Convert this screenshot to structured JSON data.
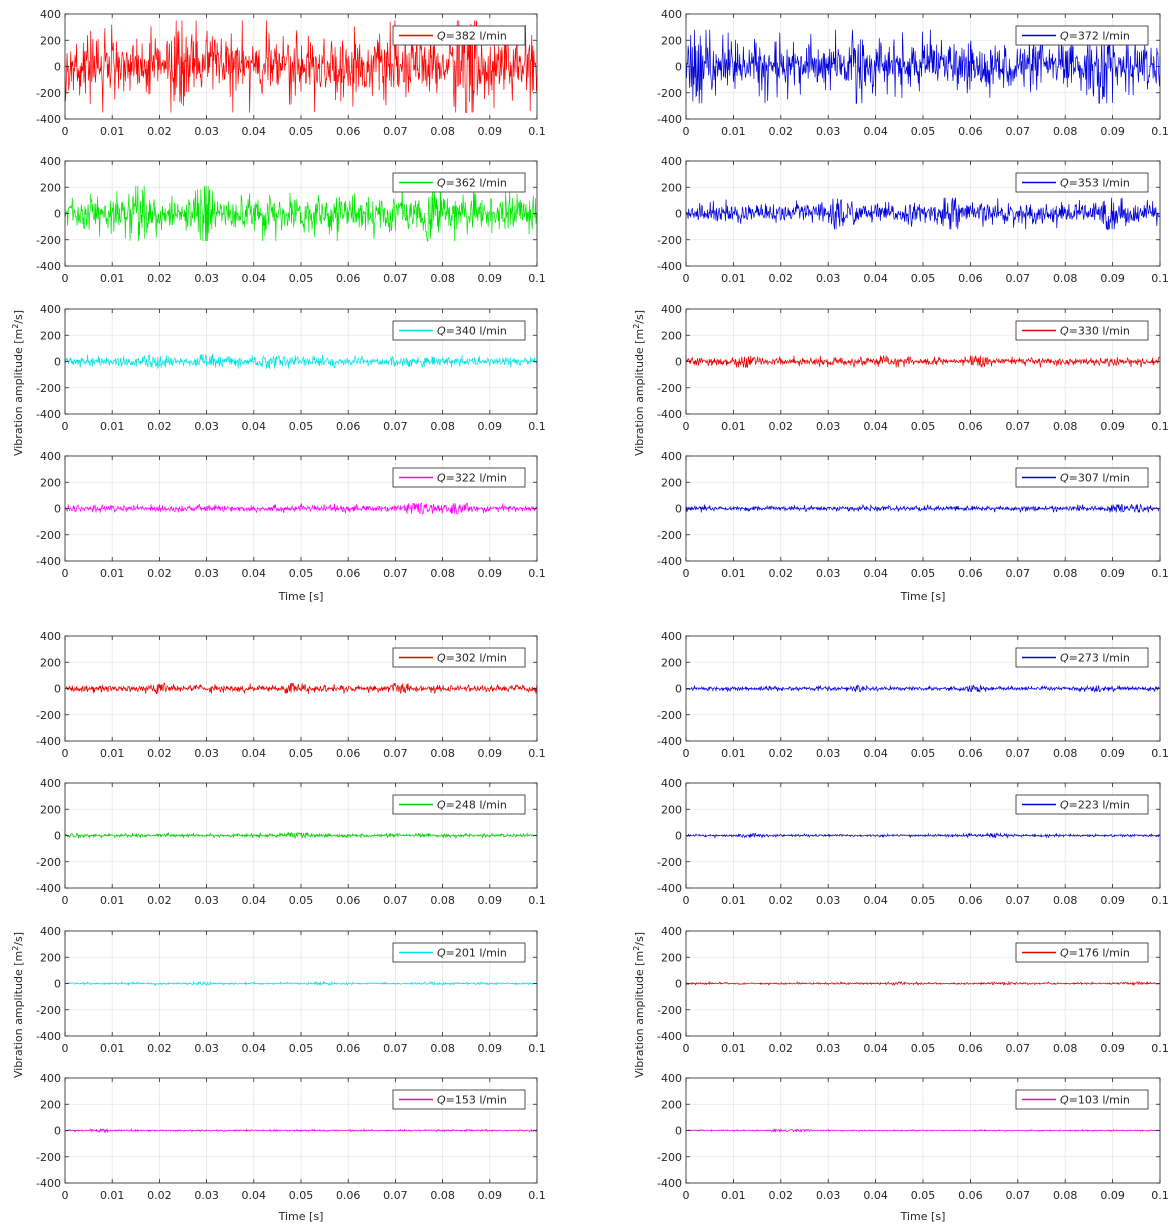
{
  "figure": {
    "y_axis_label": "Vibration amplitude",
    "y_axis_unit": "[m²/s]",
    "x_axis_label": "Time [s]",
    "legend_prefix": "Q",
    "legend_unit": "l/min"
  },
  "chart_data": [
    {
      "type": "line",
      "block": "top",
      "column": "left",
      "row": 1,
      "series": [
        {
          "name": "Q=382 l/min",
          "color": "#ff0000",
          "amplitude": 350
        }
      ],
      "xlim": [
        0,
        0.1
      ],
      "ylim": [
        -400,
        400
      ],
      "xticks": [
        "0",
        "0.01",
        "0.02",
        "0.03",
        "0.04",
        "0.05",
        "0.06",
        "0.07",
        "0.08",
        "0.09",
        "0.1"
      ],
      "yticks": [
        "400",
        "200",
        "0",
        "-200",
        "-400"
      ],
      "grid": true,
      "legend": "top-right"
    },
    {
      "type": "line",
      "block": "top",
      "column": "left",
      "row": 2,
      "series": [
        {
          "name": "Q=362 l/min",
          "color": "#00e600",
          "amplitude": 210
        }
      ],
      "xlim": [
        0,
        0.1
      ],
      "ylim": [
        -400,
        400
      ],
      "xticks": [
        "0",
        "0.01",
        "0.02",
        "0.03",
        "0.04",
        "0.05",
        "0.06",
        "0.07",
        "0.08",
        "0.09",
        "0.1"
      ],
      "yticks": [
        "400",
        "200",
        "0",
        "-200",
        "-400"
      ],
      "grid": true,
      "legend": "top-right"
    },
    {
      "type": "line",
      "block": "top",
      "column": "left",
      "row": 3,
      "series": [
        {
          "name": "Q=340 l/min",
          "color": "#00e5e5",
          "amplitude": 55
        }
      ],
      "xlim": [
        0,
        0.1
      ],
      "ylim": [
        -400,
        400
      ],
      "xticks": [
        "0",
        "0.01",
        "0.02",
        "0.03",
        "0.04",
        "0.05",
        "0.06",
        "0.07",
        "0.08",
        "0.09",
        "0.1"
      ],
      "yticks": [
        "400",
        "200",
        "0",
        "-200",
        "-400"
      ],
      "grid": true,
      "legend": "top-right"
    },
    {
      "type": "line",
      "block": "top",
      "column": "left",
      "row": 4,
      "series": [
        {
          "name": "Q=322 l/min",
          "color": "#ff00ff",
          "amplitude": 40
        }
      ],
      "xlim": [
        0,
        0.1
      ],
      "ylim": [
        -400,
        400
      ],
      "xticks": [
        "0",
        "0.01",
        "0.02",
        "0.03",
        "0.04",
        "0.05",
        "0.06",
        "0.07",
        "0.08",
        "0.09",
        "0.1"
      ],
      "yticks": [
        "400",
        "200",
        "0",
        "-200",
        "-400"
      ],
      "grid": true,
      "legend": "top-right"
    },
    {
      "type": "line",
      "block": "top",
      "column": "right",
      "row": 1,
      "series": [
        {
          "name": "Q=372 l/min",
          "color": "#0000dd",
          "amplitude": 280
        }
      ],
      "xlim": [
        0,
        0.1
      ],
      "ylim": [
        -400,
        400
      ],
      "xticks": [
        "0",
        "0.01",
        "0.02",
        "0.03",
        "0.04",
        "0.05",
        "0.06",
        "0.07",
        "0.08",
        "0.09",
        "0.1"
      ],
      "yticks": [
        "400",
        "200",
        "0",
        "-200",
        "-400"
      ],
      "grid": true,
      "legend": "top-right"
    },
    {
      "type": "line",
      "block": "top",
      "column": "right",
      "row": 2,
      "series": [
        {
          "name": "Q=353 l/min",
          "color": "#0000dd",
          "amplitude": 120
        }
      ],
      "xlim": [
        0,
        0.1
      ],
      "ylim": [
        -400,
        400
      ],
      "xticks": [
        "0",
        "0.01",
        "0.02",
        "0.03",
        "0.04",
        "0.05",
        "0.06",
        "0.07",
        "0.08",
        "0.09",
        "0.1"
      ],
      "yticks": [
        "400",
        "200",
        "0",
        "-200",
        "-400"
      ],
      "grid": true,
      "legend": "top-right"
    },
    {
      "type": "line",
      "block": "top",
      "column": "right",
      "row": 3,
      "series": [
        {
          "name": "Q=330 l/min",
          "color": "#e60000",
          "amplitude": 45
        }
      ],
      "xlim": [
        0,
        0.1
      ],
      "ylim": [
        -400,
        400
      ],
      "xticks": [
        "0",
        "0.01",
        "0.02",
        "0.03",
        "0.04",
        "0.05",
        "0.06",
        "0.07",
        "0.08",
        "0.09",
        "0.1"
      ],
      "yticks": [
        "400",
        "200",
        "0",
        "-200",
        "-400"
      ],
      "grid": true,
      "legend": "top-right"
    },
    {
      "type": "line",
      "block": "top",
      "column": "right",
      "row": 4,
      "series": [
        {
          "name": "Q=307 l/min",
          "color": "#0000dd",
          "amplitude": 30
        }
      ],
      "xlim": [
        0,
        0.1
      ],
      "ylim": [
        -400,
        400
      ],
      "xticks": [
        "0",
        "0.01",
        "0.02",
        "0.03",
        "0.04",
        "0.05",
        "0.06",
        "0.07",
        "0.08",
        "0.09",
        "0.1"
      ],
      "yticks": [
        "400",
        "200",
        "0",
        "-200",
        "-400"
      ],
      "grid": true,
      "legend": "top-right"
    },
    {
      "type": "line",
      "block": "bottom",
      "column": "left",
      "row": 1,
      "series": [
        {
          "name": "Q=302 l/min",
          "color": "#e60000",
          "amplitude": 40
        }
      ],
      "xlim": [
        0,
        0.1
      ],
      "ylim": [
        -400,
        400
      ],
      "xticks": [
        "0",
        "0.01",
        "0.02",
        "0.03",
        "0.04",
        "0.05",
        "0.06",
        "0.07",
        "0.08",
        "0.09",
        "0.1"
      ],
      "yticks": [
        "400",
        "200",
        "0",
        "-200",
        "-400"
      ],
      "grid": true,
      "legend": "top-right"
    },
    {
      "type": "line",
      "block": "bottom",
      "column": "left",
      "row": 2,
      "series": [
        {
          "name": "Q=248 l/min",
          "color": "#00cc00",
          "amplitude": 20
        }
      ],
      "xlim": [
        0,
        0.1
      ],
      "ylim": [
        -400,
        400
      ],
      "xticks": [
        "0",
        "0.01",
        "0.02",
        "0.03",
        "0.04",
        "0.05",
        "0.06",
        "0.07",
        "0.08",
        "0.09",
        "0.1"
      ],
      "yticks": [
        "400",
        "200",
        "0",
        "-200",
        "-400"
      ],
      "grid": true,
      "legend": "top-right"
    },
    {
      "type": "line",
      "block": "bottom",
      "column": "left",
      "row": 3,
      "series": [
        {
          "name": "Q=201 l/min",
          "color": "#00e5e5",
          "amplitude": 12
        }
      ],
      "xlim": [
        0,
        0.1
      ],
      "ylim": [
        -400,
        400
      ],
      "xticks": [
        "0",
        "0.01",
        "0.02",
        "0.03",
        "0.04",
        "0.05",
        "0.06",
        "0.07",
        "0.08",
        "0.09",
        "0.1"
      ],
      "yticks": [
        "400",
        "200",
        "0",
        "-200",
        "-400"
      ],
      "grid": true,
      "legend": "top-right"
    },
    {
      "type": "line",
      "block": "bottom",
      "column": "left",
      "row": 4,
      "series": [
        {
          "name": "Q=153 l/min",
          "color": "#e600e6",
          "amplitude": 10
        }
      ],
      "xlim": [
        0,
        0.1
      ],
      "ylim": [
        -400,
        400
      ],
      "xticks": [
        "0",
        "0.01",
        "0.02",
        "0.03",
        "0.04",
        "0.05",
        "0.06",
        "0.07",
        "0.08",
        "0.09",
        "0.1"
      ],
      "yticks": [
        "400",
        "200",
        "0",
        "-200",
        "-400"
      ],
      "grid": true,
      "legend": "top-right"
    },
    {
      "type": "line",
      "block": "bottom",
      "column": "right",
      "row": 1,
      "series": [
        {
          "name": "Q=273 l/min",
          "color": "#0000dd",
          "amplitude": 25
        }
      ],
      "xlim": [
        0,
        0.1
      ],
      "ylim": [
        -400,
        400
      ],
      "xticks": [
        "0",
        "0.01",
        "0.02",
        "0.03",
        "0.04",
        "0.05",
        "0.06",
        "0.07",
        "0.08",
        "0.09",
        "0.1"
      ],
      "yticks": [
        "400",
        "200",
        "0",
        "-200",
        "-400"
      ],
      "grid": true,
      "legend": "top-right"
    },
    {
      "type": "line",
      "block": "bottom",
      "column": "right",
      "row": 2,
      "series": [
        {
          "name": "Q=223 l/min",
          "color": "#0000dd",
          "amplitude": 15
        }
      ],
      "xlim": [
        0,
        0.1
      ],
      "ylim": [
        -400,
        400
      ],
      "xticks": [
        "0",
        "0.01",
        "0.02",
        "0.03",
        "0.04",
        "0.05",
        "0.06",
        "0.07",
        "0.08",
        "0.09",
        "0.1"
      ],
      "yticks": [
        "400",
        "200",
        "0",
        "-200",
        "-400"
      ],
      "grid": true,
      "legend": "top-right"
    },
    {
      "type": "line",
      "block": "bottom",
      "column": "right",
      "row": 3,
      "series": [
        {
          "name": "Q=176 l/min",
          "color": "#e60000",
          "amplitude": 12
        }
      ],
      "xlim": [
        0,
        0.1
      ],
      "ylim": [
        -400,
        400
      ],
      "xticks": [
        "0",
        "0.01",
        "0.02",
        "0.03",
        "0.04",
        "0.05",
        "0.06",
        "0.07",
        "0.08",
        "0.09",
        "0.1"
      ],
      "yticks": [
        "400",
        "200",
        "0",
        "-200",
        "-400"
      ],
      "grid": true,
      "legend": "top-right"
    },
    {
      "type": "line",
      "block": "bottom",
      "column": "right",
      "row": 4,
      "series": [
        {
          "name": "Q=103 l/min",
          "color": "#e600e6",
          "amplitude": 8
        }
      ],
      "xlim": [
        0,
        0.1
      ],
      "ylim": [
        -400,
        400
      ],
      "xticks": [
        "0",
        "0.01",
        "0.02",
        "0.03",
        "0.04",
        "0.05",
        "0.06",
        "0.07",
        "0.08",
        "0.09",
        "0.1"
      ],
      "yticks": [
        "400",
        "200",
        "0",
        "-200",
        "-400"
      ],
      "grid": true,
      "legend": "top-right"
    }
  ]
}
